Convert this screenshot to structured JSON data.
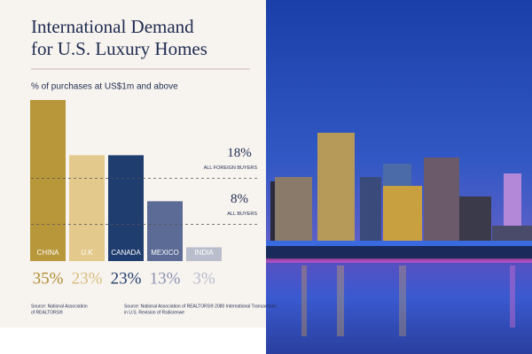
{
  "chart_data": {
    "type": "bar",
    "title": [
      "International Demand",
      "for U.S. Luxury Homes"
    ],
    "subtitle": "% of purchases at US$1m and above",
    "categories": [
      "CHINA",
      "U.K",
      "CANADA",
      "MEXICO",
      "INDIA"
    ],
    "values": [
      35,
      23,
      23,
      13,
      3
    ],
    "value_labels": [
      "35%",
      "23%",
      "23%",
      "13%",
      "3%"
    ],
    "colors": [
      "#b8963a",
      "#e3c98c",
      "#1f3d6e",
      "#5b6b95",
      "#b9bdcc"
    ],
    "label_colors": [
      "#b08c33",
      "#d9bd7a",
      "#1f3d6e",
      "#8a93b2",
      "#b9bdcc"
    ],
    "ylim": [
      0,
      35
    ],
    "reference_lines": [
      {
        "value": 18,
        "value_label": "18%",
        "label": "ALL FOREIGN BUYERS"
      },
      {
        "value": 8,
        "value_label": "8%",
        "label": "ALL BUYERS"
      }
    ],
    "sources": [
      [
        "Source: National Association",
        "of REALTORS®"
      ],
      [
        "Source: National Association of REALTORS® 2080 International Transactions",
        "in U.S. Revision of Rsdicienwe"
      ]
    ]
  }
}
